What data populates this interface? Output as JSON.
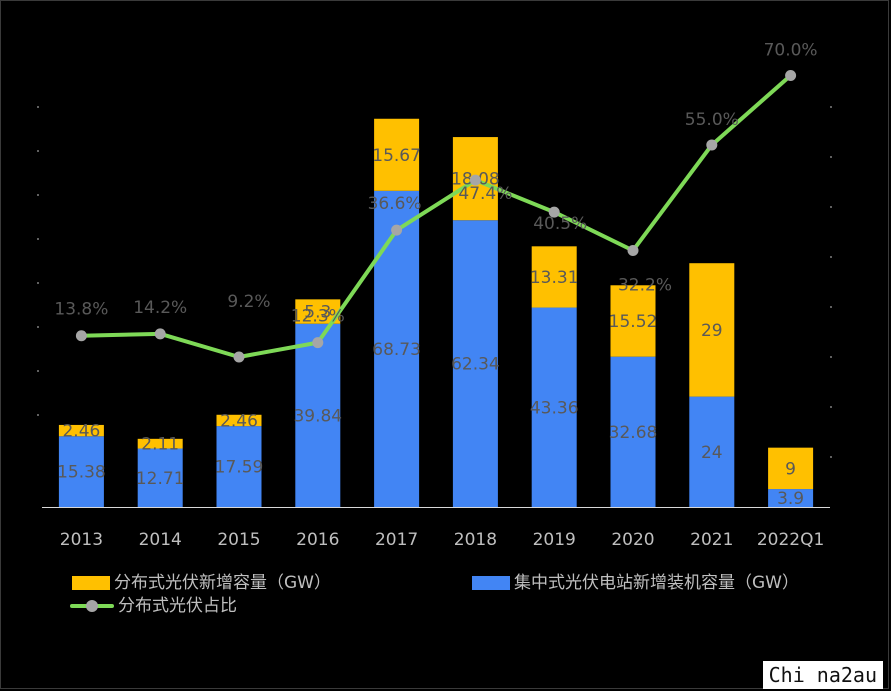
{
  "chart_data": {
    "type": "bar",
    "stacked": true,
    "categories": [
      "2013",
      "2014",
      "2015",
      "2016",
      "2017",
      "2018",
      "2019",
      "2020",
      "2021",
      "2022Q1"
    ],
    "series": [
      {
        "name": "集中式光伏电站新增装机容量（GW）",
        "role": "bottom",
        "color": "#4285f4",
        "values": [
          15.38,
          12.71,
          17.59,
          39.84,
          68.73,
          62.34,
          43.36,
          32.68,
          24,
          3.9
        ],
        "labels": [
          "15.38",
          "12.71",
          "17.59",
          "39.84",
          "68.73",
          "62.34",
          "43.36",
          "32.68",
          "24",
          "3.9"
        ]
      },
      {
        "name": "分布式光伏新增容量（GW）",
        "role": "top",
        "color": "#ffc000",
        "values": [
          2.46,
          2.11,
          2.46,
          5.3,
          15.67,
          18.08,
          13.31,
          15.52,
          29,
          9
        ],
        "labels": [
          "2.46",
          "2.11",
          "2.46",
          "5.3",
          "15.67",
          "18.08",
          "13.31",
          "15.52",
          "29",
          "9"
        ]
      },
      {
        "name": "分布式光伏占比",
        "type": "line",
        "axis": "secondary",
        "color": "#7ed957",
        "marker_color": "#a6a6a6",
        "values": [
          13.8,
          14.2,
          9.2,
          12.3,
          36.6,
          47.4,
          40.5,
          32.2,
          55.0,
          70.0
        ],
        "labels": [
          "13.8%",
          "14.2%",
          "9.2%",
          "12.3%",
          "36.6%",
          "47.4%",
          "40.5%",
          "32.2%",
          "55.0%",
          "70.0%"
        ]
      }
    ],
    "ylim": [
      0,
      90
    ],
    "y2lim": [
      0,
      80
    ],
    "grid": false,
    "legend_position": "bottom"
  },
  "legend": {
    "distributed": "分布式光伏新增容量（GW）",
    "centralized": "集中式光伏电站新增装机容量（GW）",
    "ratio": "分布式光伏占比"
  },
  "watermark": "Chi na2au"
}
